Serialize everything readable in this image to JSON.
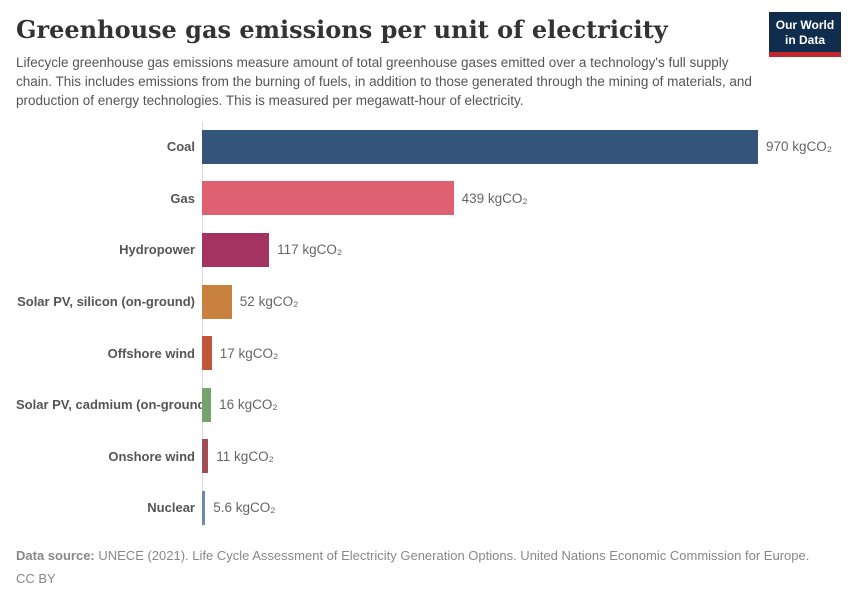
{
  "header": {
    "title": "Greenhouse gas emissions per unit of electricity",
    "subtitle": "Lifecycle greenhouse gas emissions measure amount of total greenhouse gases emitted over a technology's full supply chain. This includes emissions from the burning of fuels, in addition to those generated through the mining of materials, and production of energy technologies. This is measured per megawatt-hour of electricity.",
    "logo": {
      "line1": "Our World",
      "line2": "in Data",
      "bg_color": "#102d4e",
      "accent_color": "#c0262c"
    }
  },
  "chart_data": {
    "type": "bar",
    "orientation": "horizontal",
    "title": "Greenhouse gas emissions per unit of electricity",
    "xlabel": "",
    "ylabel": "",
    "unit": "kgCO₂",
    "xlim": [
      0,
      970
    ],
    "grid": false,
    "legend": "none",
    "categories": [
      "Coal",
      "Gas",
      "Hydropower",
      "Solar PV, silicon (on-ground)",
      "Offshore wind",
      "Solar PV, cadmium (on-ground)",
      "Onshore wind",
      "Nuclear"
    ],
    "values": [
      970,
      439,
      117,
      52,
      17,
      16,
      11,
      5.6
    ],
    "value_labels": [
      "970 kgCO₂",
      "439 kgCO₂",
      "117 kgCO₂",
      "52 kgCO₂",
      "17 kgCO₂",
      "16 kgCO₂",
      "11 kgCO₂",
      "5.6 kgCO₂"
    ],
    "bar_colors": [
      "#35547a",
      "#df6171",
      "#a33361",
      "#c8813f",
      "#bf5639",
      "#76a26b",
      "#a24d55",
      "#6c87b8"
    ],
    "axis_color": "#dcdcdc"
  },
  "footer": {
    "source_label": "Data source:",
    "source_text": " UNECE (2021). Life Cycle Assessment of Electricity Generation Options. United Nations Economic Commission for Europe.",
    "license": "CC BY"
  }
}
